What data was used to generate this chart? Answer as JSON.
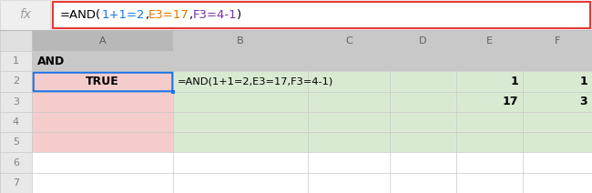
{
  "fig_width": 6.5,
  "fig_height": 2.12,
  "dpi": 100,
  "formula_bar_text_parts": [
    {
      "text": "=AND(",
      "color": "#000000"
    },
    {
      "text": "1+1=2",
      "color": "#1a73e8"
    },
    {
      "text": ",",
      "color": "#000000"
    },
    {
      "text": "E3=17",
      "color": "#e37400"
    },
    {
      "text": ",",
      "color": "#000000"
    },
    {
      "text": "F3=4-1",
      "color": "#7b2fa8"
    },
    {
      "text": ")",
      "color": "#000000"
    }
  ],
  "formula_bar_border": "#e53935",
  "fx_text": "fx",
  "fx_color": "#9e9e9e",
  "col_headers": [
    "",
    "A",
    "B",
    "C",
    "D",
    "E",
    "F"
  ],
  "row_numbers": [
    "1",
    "2",
    "3",
    "4",
    "5",
    "6",
    "7"
  ],
  "header_bg": "#c8c8c8",
  "header_text_color": "#808080",
  "row_header_bg": "#e8e8e8",
  "row_header_text_color": "#808080",
  "pink_bg": "#f4cccc",
  "green_bg": "#d9ead3",
  "white_bg": "#ffffff",
  "cell_data": {
    "A1": {
      "text": "AND",
      "fg": "#000000",
      "bold": true,
      "align": "left"
    },
    "A2": {
      "text": "TRUE",
      "fg": "#000000",
      "bold": true,
      "align": "center"
    },
    "B2": {
      "text": "=AND(1+1=2,E3=17,F3=4-1)",
      "fg": "#000000",
      "bold": false,
      "align": "left"
    },
    "E2": {
      "text": "1",
      "fg": "#000000",
      "bold": true,
      "align": "right"
    },
    "F2": {
      "text": "1",
      "fg": "#000000",
      "bold": true,
      "align": "right"
    },
    "E3": {
      "text": "17",
      "fg": "#000000",
      "bold": true,
      "align": "right"
    },
    "F3": {
      "text": "3",
      "fg": "#000000",
      "bold": true,
      "align": "right"
    }
  },
  "num_rows": 7,
  "num_cols": 7
}
